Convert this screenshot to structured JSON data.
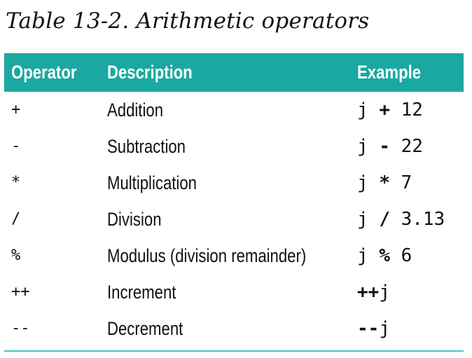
{
  "caption": "Table 13-2. Arithmetic operators",
  "table": {
    "headers": {
      "operator": "Operator",
      "description": "Description",
      "example": "Example"
    },
    "rows": [
      {
        "operator": "+",
        "description": "Addition",
        "example_pre": "j ",
        "example_op": "+",
        "example_post": " 12"
      },
      {
        "operator": "-",
        "description": "Subtraction",
        "example_pre": "j ",
        "example_op": "-",
        "example_post": " 22"
      },
      {
        "operator": "*",
        "description": "Multiplication",
        "example_pre": "j ",
        "example_op": "*",
        "example_post": " 7"
      },
      {
        "operator": "/",
        "description": "Division",
        "example_pre": "j ",
        "example_op": "/",
        "example_post": " 3.13"
      },
      {
        "operator": "%",
        "description": "Modulus (division remainder)",
        "example_pre": "j ",
        "example_op": "%",
        "example_post": " 6"
      },
      {
        "operator": "++",
        "description": "Increment",
        "example_pre": "",
        "example_op": "++",
        "example_post": "j"
      },
      {
        "operator": "--",
        "description": "Decrement",
        "example_pre": "",
        "example_op": "--",
        "example_post": "j"
      }
    ]
  },
  "colors": {
    "header_background": "#1aa8a0",
    "header_text": "#ffffff",
    "rule": "#4fc1b8",
    "body_text": "#111111"
  }
}
